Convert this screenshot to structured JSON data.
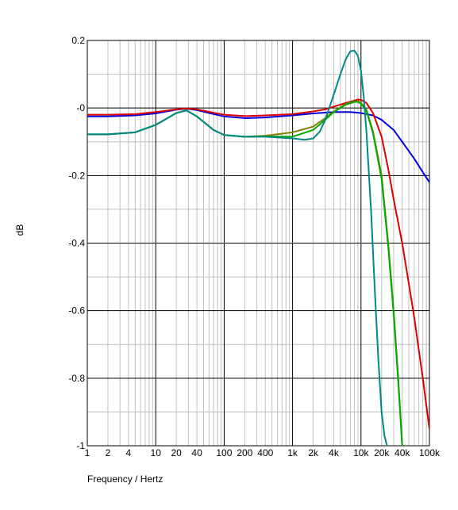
{
  "chart_data": {
    "type": "line",
    "title": "",
    "xlabel": "Frequency / Hertz",
    "ylabel": "dB",
    "xscale": "log",
    "xlim": [
      1,
      100000
    ],
    "ylim": [
      -1,
      0.2
    ],
    "grid": true,
    "legend": "none",
    "xticks": [
      {
        "value": 1,
        "label": "1"
      },
      {
        "value": 2,
        "label": "2"
      },
      {
        "value": 4,
        "label": "4"
      },
      {
        "value": 10,
        "label": "10"
      },
      {
        "value": 20,
        "label": "20"
      },
      {
        "value": 40,
        "label": "40"
      },
      {
        "value": 100,
        "label": "100"
      },
      {
        "value": 200,
        "label": "200"
      },
      {
        "value": 400,
        "label": "400"
      },
      {
        "value": 1000,
        "label": "1k"
      },
      {
        "value": 2000,
        "label": "2k"
      },
      {
        "value": 4000,
        "label": "4k"
      },
      {
        "value": 10000,
        "label": "10k"
      },
      {
        "value": 20000,
        "label": "20k"
      },
      {
        "value": 40000,
        "label": "40k"
      },
      {
        "value": 100000,
        "label": "100k"
      }
    ],
    "yticks": [
      {
        "value": 0.2,
        "label": "0.2"
      },
      {
        "value": 0,
        "label": "-0"
      },
      {
        "value": -0.2,
        "label": "-0.2"
      },
      {
        "value": -0.4,
        "label": "-0.4"
      },
      {
        "value": -0.6,
        "label": "-0.6"
      },
      {
        "value": -0.8,
        "label": "-0.8"
      },
      {
        "value": -1,
        "label": "-1"
      }
    ],
    "series": [
      {
        "color": "#0000dd",
        "x": [
          1,
          2,
          5,
          10,
          20,
          28,
          40,
          70,
          100,
          200,
          400,
          1000,
          2000,
          4000,
          7000,
          10000,
          15000,
          20000,
          30000,
          40000,
          60000,
          80000,
          100000
        ],
        "y": [
          -0.025,
          -0.025,
          -0.022,
          -0.016,
          -0.005,
          -0.002,
          -0.006,
          -0.018,
          -0.025,
          -0.03,
          -0.028,
          -0.022,
          -0.016,
          -0.012,
          -0.012,
          -0.015,
          -0.022,
          -0.035,
          -0.065,
          -0.1,
          -0.15,
          -0.19,
          -0.22
        ]
      },
      {
        "color": "#dd0000",
        "x": [
          1,
          2,
          5,
          10,
          20,
          28,
          40,
          70,
          100,
          200,
          400,
          1000,
          2000,
          3000,
          4000,
          6000,
          8000,
          9000,
          10000,
          12000,
          15000,
          20000,
          25000,
          30000,
          40000,
          50000,
          60000,
          80000,
          100000
        ],
        "y": [
          -0.02,
          -0.02,
          -0.018,
          -0.012,
          -0.004,
          -0.001,
          -0.004,
          -0.014,
          -0.02,
          -0.024,
          -0.022,
          -0.018,
          -0.01,
          -0.004,
          0.004,
          0.015,
          0.022,
          0.025,
          0.024,
          0.015,
          -0.015,
          -0.085,
          -0.18,
          -0.27,
          -0.4,
          -0.52,
          -0.62,
          -0.8,
          -0.95
        ]
      },
      {
        "color": "#808000",
        "x": [
          1,
          2,
          5,
          10,
          20,
          28,
          40,
          70,
          100,
          200,
          400,
          1000,
          2000,
          3000,
          4000,
          6000,
          8000,
          9000,
          10000,
          12000,
          15000,
          20000,
          25000,
          30000,
          35000,
          40000
        ],
        "y": [
          -0.078,
          -0.078,
          -0.072,
          -0.05,
          -0.015,
          -0.007,
          -0.025,
          -0.065,
          -0.08,
          -0.085,
          -0.082,
          -0.072,
          -0.055,
          -0.03,
          -0.01,
          0.012,
          0.02,
          0.02,
          0.015,
          -0.005,
          -0.07,
          -0.2,
          -0.4,
          -0.6,
          -0.8,
          -1.0
        ]
      },
      {
        "color": "#00aa00",
        "x": [
          1,
          2,
          5,
          10,
          20,
          28,
          40,
          70,
          100,
          200,
          400,
          1000,
          2000,
          3000,
          4000,
          6000,
          8000,
          9000,
          10000,
          12000,
          15000,
          20000,
          25000,
          30000,
          35000,
          40000
        ],
        "y": [
          -0.078,
          -0.078,
          -0.072,
          -0.05,
          -0.015,
          -0.007,
          -0.025,
          -0.065,
          -0.08,
          -0.085,
          -0.084,
          -0.085,
          -0.065,
          -0.035,
          -0.012,
          0.01,
          0.018,
          0.018,
          0.013,
          -0.008,
          -0.075,
          -0.21,
          -0.41,
          -0.61,
          -0.81,
          -1.0
        ]
      },
      {
        "color": "#008888",
        "x": [
          1,
          2,
          5,
          10,
          20,
          28,
          40,
          70,
          100,
          200,
          400,
          1000,
          1500,
          2000,
          2500,
          3000,
          4000,
          5000,
          6000,
          7000,
          8000,
          9000,
          10000,
          11000,
          12000,
          14000,
          16000,
          18000,
          20000,
          22000,
          24000
        ],
        "y": [
          -0.078,
          -0.078,
          -0.072,
          -0.05,
          -0.015,
          -0.007,
          -0.025,
          -0.065,
          -0.08,
          -0.085,
          -0.085,
          -0.09,
          -0.094,
          -0.09,
          -0.07,
          -0.035,
          0.04,
          0.1,
          0.145,
          0.168,
          0.17,
          0.155,
          0.11,
          0.03,
          -0.07,
          -0.3,
          -0.55,
          -0.75,
          -0.9,
          -0.97,
          -1.0
        ]
      }
    ]
  }
}
